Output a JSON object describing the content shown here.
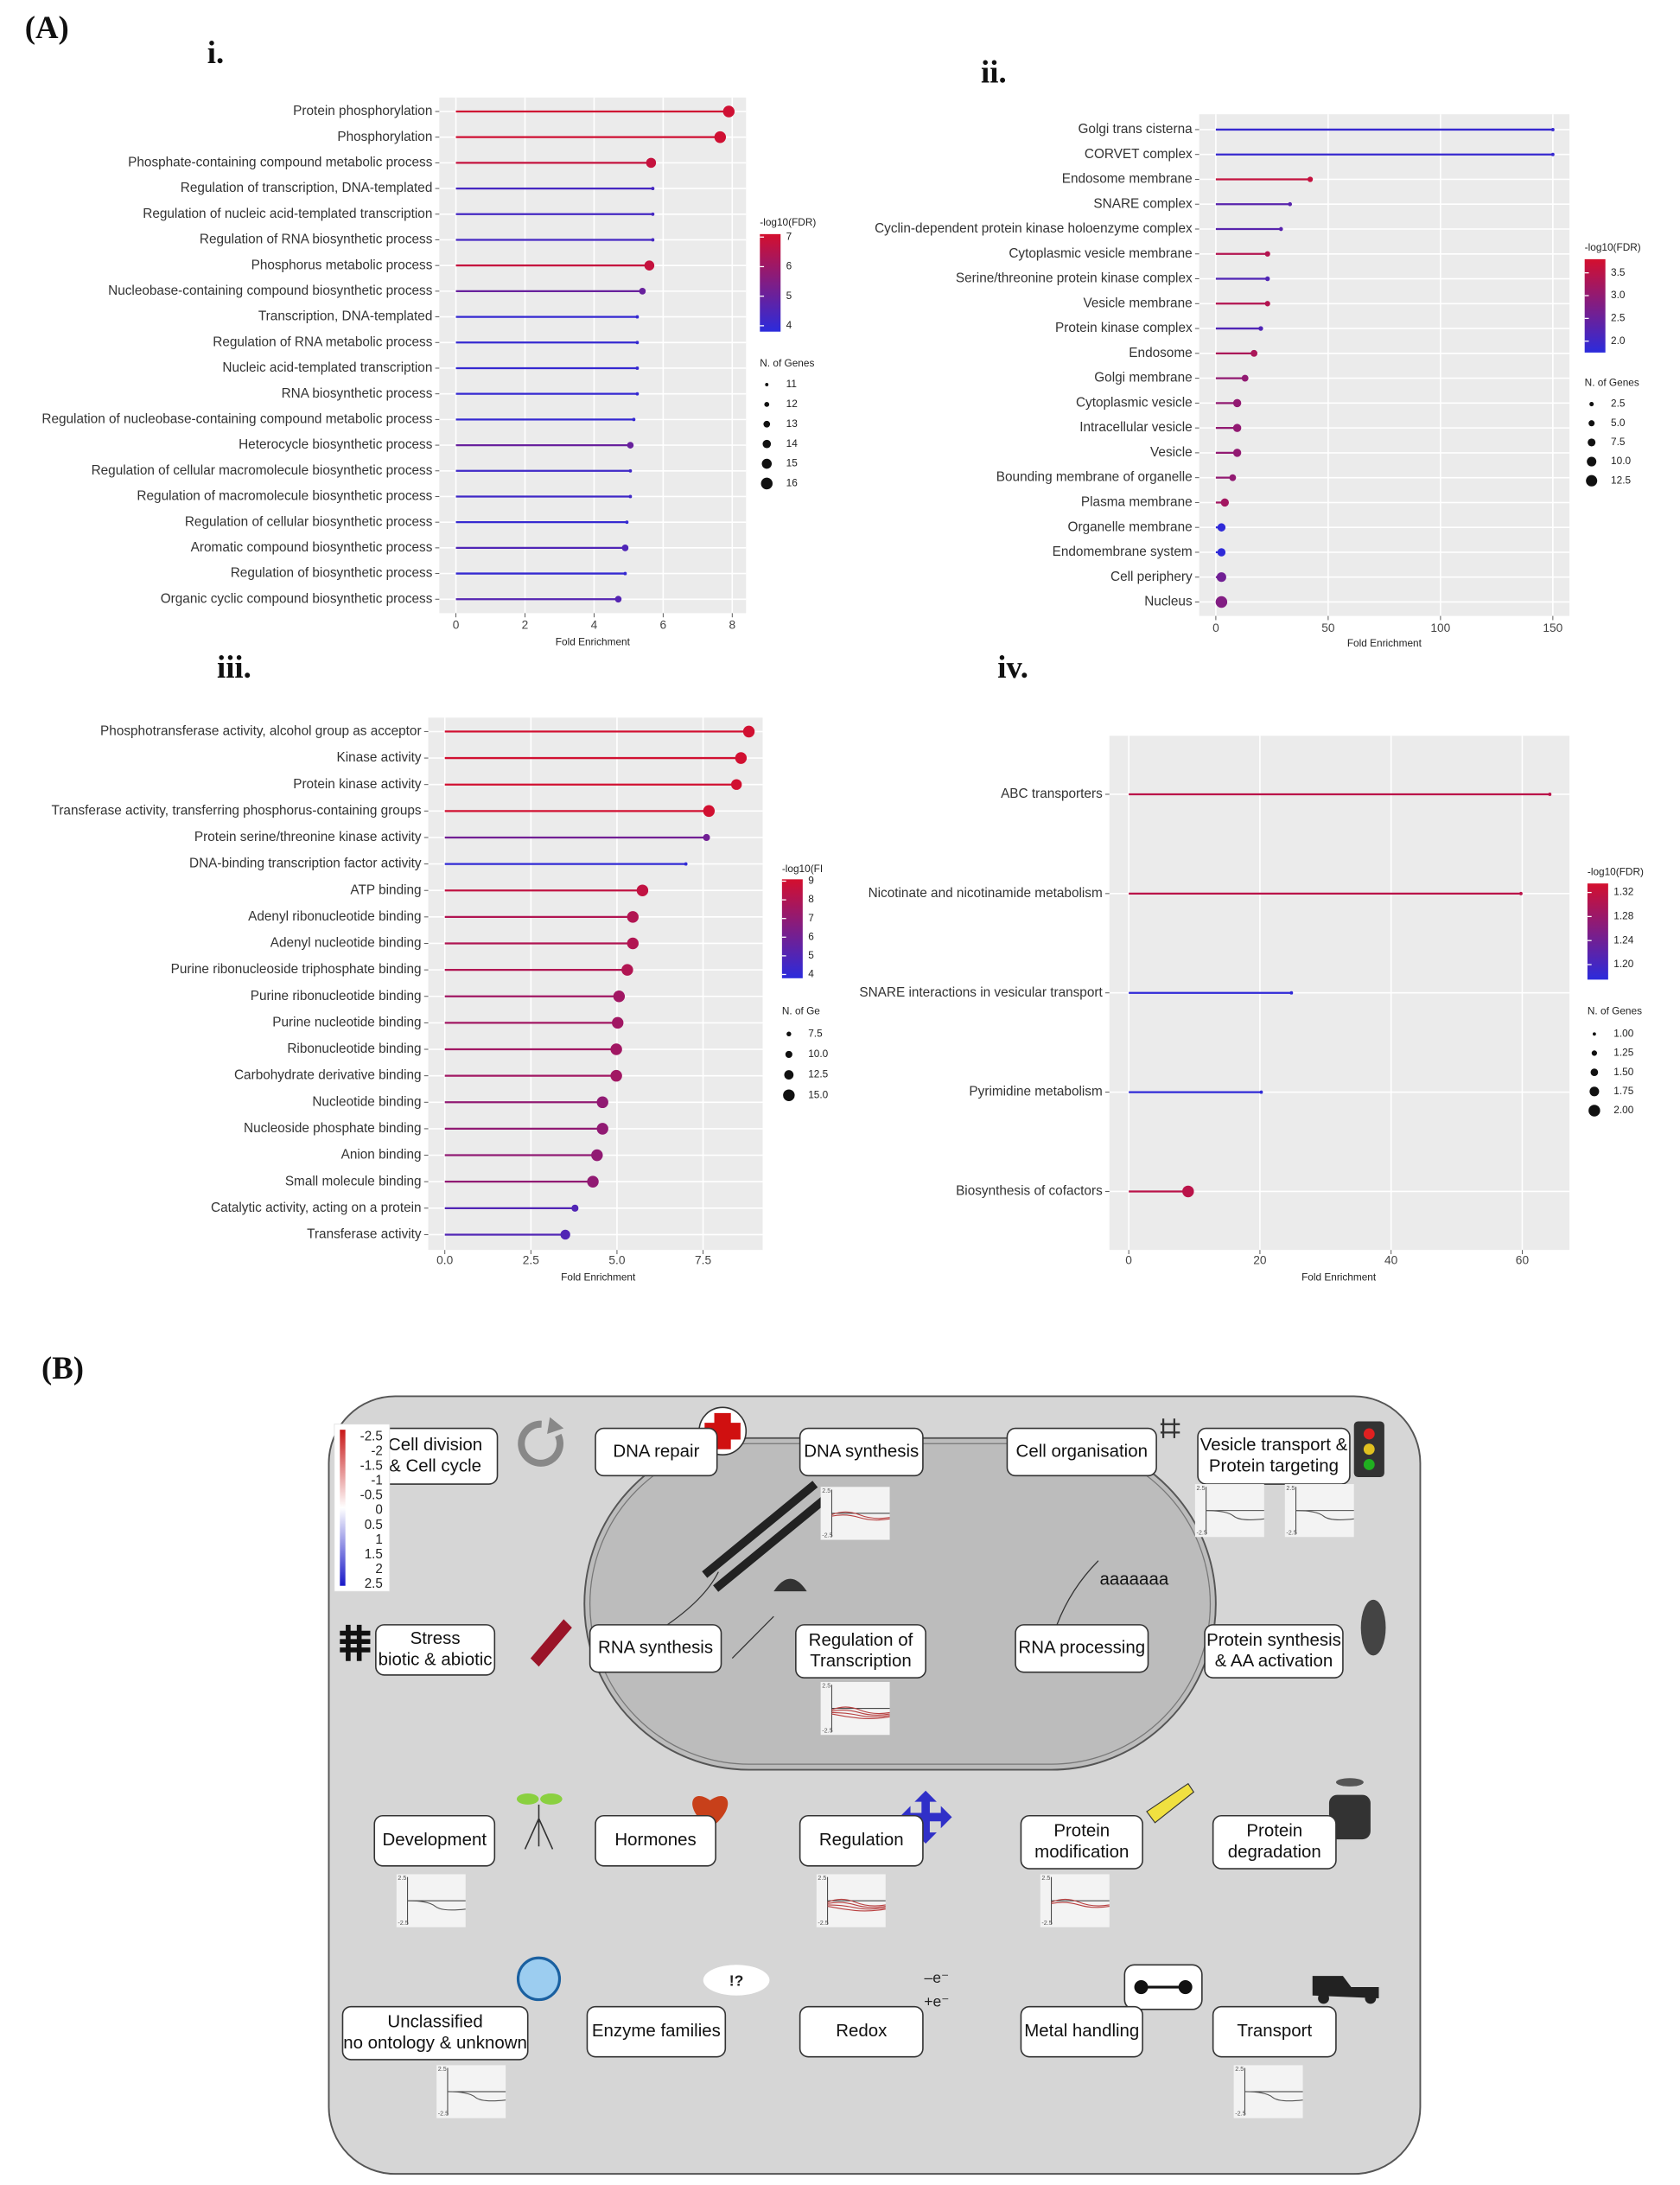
{
  "panel_labels": [
    "(A)",
    "(B)"
  ],
  "chart_data": [
    {
      "type": "lollipop",
      "title": "i.",
      "categories": [
        "Protein phosphorylation",
        "Phosphorylation",
        "Phosphate-containing compound metabolic process",
        "Regulation of transcription, DNA-templated",
        "Regulation of nucleic acid-templated transcription",
        "Regulation of RNA biosynthetic process",
        "Phosphorus metabolic process",
        "Nucleobase-containing compound biosynthetic process",
        "Transcription, DNA-templated",
        "Regulation of RNA metabolic process",
        "Nucleic acid-templated transcription",
        "RNA biosynthetic process",
        "Regulation of nucleobase-containing compound metabolic process",
        "Heterocycle biosynthetic process",
        "Regulation of cellular macromolecule biosynthetic process",
        "Regulation of macromolecule biosynthetic process",
        "Regulation of cellular biosynthetic process",
        "Aromatic compound biosynthetic process",
        "Regulation of biosynthetic process",
        "Organic cyclic compound biosynthetic process"
      ],
      "values": [
        7.9,
        7.65,
        5.65,
        5.7,
        5.7,
        5.7,
        5.6,
        5.4,
        5.25,
        5.25,
        5.25,
        5.25,
        5.15,
        5.05,
        5.05,
        5.05,
        4.95,
        4.9,
        4.9,
        4.7
      ],
      "xlim": [
        -0.48,
        8.4
      ],
      "xticks": [
        0,
        2,
        4,
        6,
        8
      ],
      "xlabel": "Fold Enrichment",
      "color_title": "-log10(FDR)",
      "color_values": [
        7,
        7,
        6.8,
        4.3,
        4.3,
        4.3,
        6.8,
        5,
        4,
        4,
        4,
        4,
        4,
        5,
        4.2,
        4.2,
        4,
        4.5,
        4,
        4.6
      ],
      "color_lim": [
        3.8,
        7.1
      ],
      "color_ticks": [
        4,
        5,
        6,
        7
      ],
      "color_scale": [
        "#2b2bdc",
        "#d40f2e"
      ],
      "size_title": "N. of Genes",
      "size_values": [
        16,
        16,
        15,
        11,
        11,
        11,
        15,
        13,
        11,
        11,
        11,
        11,
        11,
        13,
        11,
        11,
        11,
        13,
        11,
        13
      ],
      "size_lim": [
        11,
        16
      ],
      "size_ticks": [
        11,
        12,
        13,
        14,
        15,
        16
      ],
      "grid": true
    },
    {
      "type": "lollipop",
      "title": "ii.",
      "categories": [
        "Golgi trans cisterna",
        "CORVET complex",
        "Endosome membrane",
        "SNARE complex",
        "Cyclin-dependent protein kinase holoenzyme complex",
        "Cytoplasmic vesicle membrane",
        "Serine/threonine protein kinase complex",
        "Vesicle membrane",
        "Protein kinase complex",
        "Endosome",
        "Golgi membrane",
        "Cytoplasmic vesicle",
        "Intracellular vesicle",
        "Vesicle",
        "Bounding membrane of organelle",
        "Plasma membrane",
        "Organelle membrane",
        "Endomembrane system",
        "Cell periphery",
        "Nucleus"
      ],
      "values": [
        150,
        150,
        42,
        33,
        29,
        23,
        23,
        23,
        20,
        17,
        13,
        9.5,
        9.5,
        9.5,
        7.5,
        4,
        2.5,
        2.5,
        2.5,
        2.5
      ],
      "xlim": [
        -7.4,
        157.4
      ],
      "xticks": [
        0,
        50,
        100,
        150
      ],
      "xlabel": "Fold Enrichment",
      "color_title": "-log10(FDR)",
      "color_values": [
        1.9,
        1.9,
        3.6,
        2.3,
        2.3,
        3.4,
        2.2,
        3.4,
        2.2,
        3.3,
        3.0,
        3.0,
        3.0,
        3.0,
        3.0,
        3.2,
        1.8,
        1.8,
        2.6,
        2.8
      ],
      "color_lim": [
        1.75,
        3.8
      ],
      "color_ticks": [
        {
          "value": 2,
          "label": "2.0"
        },
        2.5,
        {
          "value": 3,
          "label": "3.0"
        },
        3.5
      ],
      "color_scale": [
        "#2b2bdc",
        "#d40f2e"
      ],
      "size_title": "N. of Genes",
      "size_values": [
        1,
        1,
        4,
        2,
        2,
        4,
        3,
        4,
        3,
        6,
        6,
        8,
        8,
        8,
        6,
        8,
        8,
        8,
        10,
        13
      ],
      "size_lim": [
        1,
        13
      ],
      "size_ticks": [
        2.5,
        {
          "value": 5,
          "label": "5.0"
        },
        7.5,
        {
          "value": 10,
          "label": "10.0"
        },
        12.5
      ],
      "grid": true
    },
    {
      "type": "lollipop",
      "title": "iii.",
      "categories": [
        "Phosphotransferase activity, alcohol group as acceptor",
        "Kinase activity",
        "Protein kinase activity",
        "Transferase activity, transferring phosphorus-containing groups",
        "Protein serine/threonine kinase activity",
        "DNA-binding transcription factor activity",
        "ATP binding",
        "Adenyl ribonucleotide binding",
        "Adenyl nucleotide binding",
        "Purine ribonucleoside triphosphate binding",
        "Purine ribonucleotide binding",
        "Purine nucleotide binding",
        "Ribonucleotide binding",
        "Carbohydrate derivative binding",
        "Nucleotide binding",
        "Nucleoside phosphate binding",
        "Anion binding",
        "Small molecule binding",
        "Catalytic activity, acting on a protein",
        "Transferase activity"
      ],
      "values": [
        8.83,
        8.6,
        8.47,
        7.67,
        7.6,
        7.0,
        5.74,
        5.46,
        5.46,
        5.3,
        5.06,
        5.02,
        4.98,
        4.98,
        4.58,
        4.58,
        4.42,
        4.3,
        3.78,
        3.5
      ],
      "xlim": [
        -0.48,
        9.23
      ],
      "xticks": [
        {
          "value": 0,
          "label": "0.0"
        },
        2.5,
        {
          "value": 5,
          "label": "5.0"
        },
        7.5
      ],
      "xlabel": "Fold Enrichment",
      "color_title": "-log10(FI",
      "color_values": [
        9,
        9,
        9,
        9,
        6,
        4,
        8.5,
        8,
        8,
        8,
        7.5,
        7.5,
        7.5,
        7.5,
        7,
        7,
        7,
        7,
        5,
        5
      ],
      "color_lim": [
        3.8,
        9.1
      ],
      "color_ticks": [
        4,
        5,
        6,
        7,
        8,
        9
      ],
      "color_scale": [
        "#2b2bdc",
        "#d40f2e"
      ],
      "size_title": "N. of Ge",
      "size_values": [
        15,
        15,
        14,
        15,
        10,
        6,
        15,
        15,
        15,
        15,
        15,
        15,
        15,
        15,
        15,
        15,
        15,
        15,
        10,
        13
      ],
      "size_lim": [
        6,
        15
      ],
      "size_ticks": [
        7.5,
        {
          "value": 10,
          "label": "10.0"
        },
        12.5,
        {
          "value": 15,
          "label": "15.0"
        }
      ],
      "grid": true
    },
    {
      "type": "lollipop",
      "title": "iv.",
      "categories": [
        "ABC transporters",
        "Nicotinate and nicotinamide metabolism",
        "SNARE interactions in vesicular transport",
        "Pyrimidine metabolism",
        "Biosynthesis of cofactors"
      ],
      "values": [
        64.2,
        59.8,
        24.8,
        20.2,
        9.05
      ],
      "xlim": [
        -2.95,
        67.2
      ],
      "xticks": [
        0,
        20,
        40,
        60
      ],
      "xlabel": "Fold Enrichment",
      "color_title": "-log10(FDR)",
      "color_values": [
        1.31,
        1.31,
        1.18,
        1.18,
        1.31
      ],
      "color_lim": [
        1.175,
        1.335
      ],
      "color_ticks": [
        {
          "value": 1.2,
          "label": "1.20"
        },
        1.24,
        1.28,
        1.32
      ],
      "color_scale": [
        "#2b2bdc",
        "#d40f2e"
      ],
      "size_title": "N. of Genes",
      "size_values": [
        1,
        1,
        1,
        1,
        2
      ],
      "size_lim": [
        1,
        2
      ],
      "size_ticks": [
        {
          "value": 1,
          "label": "1.00"
        },
        1.25,
        {
          "value": 1.5,
          "label": "1.50"
        },
        1.75,
        {
          "value": 2,
          "label": "2.00"
        }
      ],
      "grid": true
    }
  ],
  "diagram": {
    "boxes": [
      {
        "lines": [
          "Cell division",
          "& Cell cycle"
        ]
      },
      {
        "lines": [
          "DNA repair"
        ]
      },
      {
        "lines": [
          "DNA synthesis"
        ]
      },
      {
        "lines": [
          "Cell organisation"
        ]
      },
      {
        "lines": [
          "Vesicle transport &",
          "Protein targeting"
        ]
      },
      {
        "lines": [
          "Stress",
          "biotic & abiotic"
        ]
      },
      {
        "lines": [
          "RNA synthesis"
        ]
      },
      {
        "lines": [
          "Regulation of",
          "Transcription"
        ]
      },
      {
        "lines": [
          "RNA processing"
        ]
      },
      {
        "lines": [
          "Protein synthesis",
          "& AA activation"
        ]
      },
      {
        "lines": [
          "Development"
        ]
      },
      {
        "lines": [
          "Hormones"
        ]
      },
      {
        "lines": [
          "Regulation"
        ]
      },
      {
        "lines": [
          "Protein",
          "modification"
        ]
      },
      {
        "lines": [
          "Protein",
          "degradation"
        ]
      },
      {
        "lines": [
          "Unclassified",
          "no ontology & unknown"
        ]
      },
      {
        "lines": [
          "Enzyme families"
        ]
      },
      {
        "lines": [
          "Redox"
        ]
      },
      {
        "lines": [
          "Metal handling"
        ]
      },
      {
        "lines": [
          "Transport"
        ]
      }
    ],
    "legend_labels": [
      "-2.5",
      "-2",
      "-1.5",
      "-1",
      "-0.5",
      "0",
      "0.5",
      "1",
      "1.5",
      "2",
      "2.5"
    ],
    "thumb_labels": [
      "2.5",
      "-2.5"
    ],
    "icon_texts": [
      "aaaaaaa",
      "!?",
      "–e⁻",
      "+e⁻"
    ]
  }
}
